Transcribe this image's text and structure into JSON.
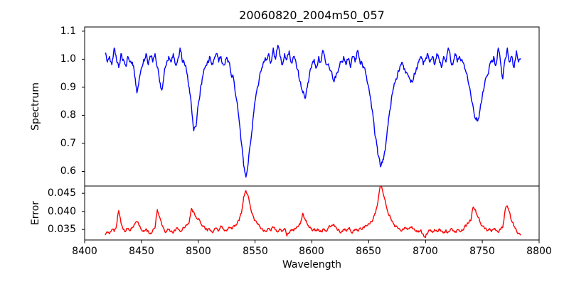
{
  "chart_data": [
    {
      "type": "line",
      "panel": "top",
      "title": "20060820_2004m50_057",
      "ylabel": "Spectrum",
      "xlabel": "",
      "color": "#0000ff",
      "xlim": [
        8400,
        8800
      ],
      "ylim": [
        0.548,
        1.115
      ],
      "yticks": [
        1.1,
        1.0,
        0.9,
        0.8,
        0.7,
        0.6
      ],
      "yticklabels": [
        "1.1",
        "1.0",
        "0.9",
        "0.8",
        "0.7",
        "0.6"
      ],
      "grid": false,
      "legend": "none",
      "x_start": 8418,
      "x_step": 2,
      "visual_noise_amplitude": 0.013,
      "values": [
        1.02,
        0.99,
        1.01,
        0.98,
        1.04,
        1.0,
        0.97,
        1.02,
        1.0,
        0.98,
        1.01,
        0.99,
        0.99,
        0.94,
        0.88,
        0.93,
        0.97,
        1.0,
        1.02,
        0.98,
        1.01,
        0.99,
        1.02,
        0.97,
        0.92,
        0.89,
        0.95,
        0.98,
        1.01,
        0.99,
        1.02,
        0.98,
        1.0,
        1.04,
        0.99,
        0.98,
        0.95,
        0.9,
        0.83,
        0.745,
        0.76,
        0.84,
        0.9,
        0.94,
        0.97,
        0.99,
        1.01,
        0.98,
        1.0,
        1.02,
        0.99,
        1.01,
        0.98,
        1.0,
        0.99,
        0.97,
        0.94,
        0.9,
        0.85,
        0.78,
        0.7,
        0.62,
        0.58,
        0.63,
        0.7,
        0.78,
        0.85,
        0.9,
        0.94,
        0.97,
        0.99,
        1.0,
        1.02,
        0.99,
        1.04,
        1.0,
        1.05,
        1.01,
        0.98,
        1.02,
        1.0,
        1.03,
        0.99,
        1.01,
        0.99,
        0.96,
        0.92,
        0.88,
        0.86,
        0.9,
        0.95,
        0.98,
        1.0,
        0.97,
        1.01,
        0.99,
        1.03,
        0.99,
        0.98,
        0.96,
        0.94,
        0.93,
        0.95,
        0.97,
        0.99,
        1.01,
        0.98,
        1.0,
        0.97,
        1.01,
        0.99,
        1.03,
        1.0,
        0.99,
        0.97,
        0.94,
        0.9,
        0.85,
        0.79,
        0.72,
        0.66,
        0.625,
        0.63,
        0.67,
        0.73,
        0.8,
        0.86,
        0.9,
        0.93,
        0.96,
        0.98,
        0.98,
        0.96,
        0.95,
        0.93,
        0.92,
        0.95,
        0.97,
        0.99,
        1.01,
        0.98,
        1.0,
        1.02,
        0.99,
        1.01,
        0.98,
        1.02,
        1.0,
        0.97,
        1.01,
        0.99,
        1.04,
        1.0,
        0.98,
        1.02,
        0.99,
        1.01,
        1.0,
        0.98,
        0.95,
        0.91,
        0.87,
        0.83,
        0.79,
        0.78,
        0.82,
        0.87,
        0.91,
        0.94,
        0.97,
        0.99,
        1.01,
        0.98,
        1.04,
        0.99,
        0.93,
        1.0,
        1.04,
        0.99,
        1.01,
        0.97,
        1.03,
        0.99,
        1.0
      ]
    },
    {
      "type": "line",
      "panel": "bottom",
      "ylabel": "Error",
      "xlabel": "Wavelength",
      "color": "#ff0000",
      "xlim": [
        8400,
        8800
      ],
      "ylim": [
        0.0321,
        0.047
      ],
      "yticks": [
        0.045,
        0.04,
        0.035
      ],
      "yticklabels": [
        "0.045",
        "0.040",
        "0.035"
      ],
      "xticks": [
        8400,
        8450,
        8500,
        8550,
        8600,
        8650,
        8700,
        8750,
        8800
      ],
      "xticklabels": [
        "8400",
        "8450",
        "8500",
        "8550",
        "8600",
        "8650",
        "8700",
        "8750",
        "8800"
      ],
      "grid": false,
      "legend": "none",
      "x_start": 8418,
      "x_step": 2,
      "visual_noise_amplitude": 0.0005,
      "values": [
        0.0335,
        0.0342,
        0.0338,
        0.035,
        0.0344,
        0.036,
        0.0402,
        0.0368,
        0.035,
        0.0345,
        0.0352,
        0.0346,
        0.0355,
        0.0365,
        0.0372,
        0.036,
        0.035,
        0.0344,
        0.0352,
        0.0346,
        0.034,
        0.0348,
        0.0355,
        0.0405,
        0.0385,
        0.0362,
        0.035,
        0.0343,
        0.035,
        0.0345,
        0.034,
        0.0348,
        0.0352,
        0.0345,
        0.035,
        0.0355,
        0.0362,
        0.037,
        0.0408,
        0.0398,
        0.0385,
        0.0378,
        0.0368,
        0.036,
        0.0352,
        0.0346,
        0.0351,
        0.0344,
        0.0349,
        0.0354,
        0.0346,
        0.036,
        0.0352,
        0.0347,
        0.035,
        0.0355,
        0.0352,
        0.0358,
        0.0365,
        0.0375,
        0.0395,
        0.044,
        0.0457,
        0.0442,
        0.041,
        0.039,
        0.0375,
        0.0365,
        0.0358,
        0.0352,
        0.0348,
        0.0344,
        0.0352,
        0.0346,
        0.0356,
        0.0349,
        0.0343,
        0.0351,
        0.0346,
        0.0353,
        0.0332,
        0.0342,
        0.035,
        0.0346,
        0.0352,
        0.0358,
        0.0368,
        0.0395,
        0.0378,
        0.0365,
        0.0355,
        0.0348,
        0.0353,
        0.0346,
        0.035,
        0.0344,
        0.0352,
        0.0347,
        0.0352,
        0.0358,
        0.0362,
        0.0358,
        0.0352,
        0.0348,
        0.0344,
        0.035,
        0.0346,
        0.0353,
        0.0348,
        0.0343,
        0.0351,
        0.0347,
        0.0352,
        0.035,
        0.0355,
        0.036,
        0.0366,
        0.0372,
        0.038,
        0.0395,
        0.0425,
        0.0468,
        0.046,
        0.0435,
        0.0408,
        0.0388,
        0.0375,
        0.0365,
        0.0358,
        0.0352,
        0.0348,
        0.0352,
        0.0356,
        0.035,
        0.0354,
        0.0358,
        0.0352,
        0.0347,
        0.0343,
        0.0349,
        0.0337,
        0.0328,
        0.034,
        0.0347,
        0.0342,
        0.035,
        0.0345,
        0.0352,
        0.0346,
        0.0341,
        0.0349,
        0.0344,
        0.0351,
        0.0346,
        0.0342,
        0.035,
        0.0345,
        0.035,
        0.0355,
        0.036,
        0.0368,
        0.0375,
        0.0412,
        0.0405,
        0.0385,
        0.037,
        0.036,
        0.0352,
        0.0346,
        0.035,
        0.0344,
        0.0352,
        0.0347,
        0.0342,
        0.035,
        0.0356,
        0.0402,
        0.0415,
        0.0398,
        0.0372,
        0.0358,
        0.0348,
        0.034,
        0.0335
      ]
    }
  ]
}
